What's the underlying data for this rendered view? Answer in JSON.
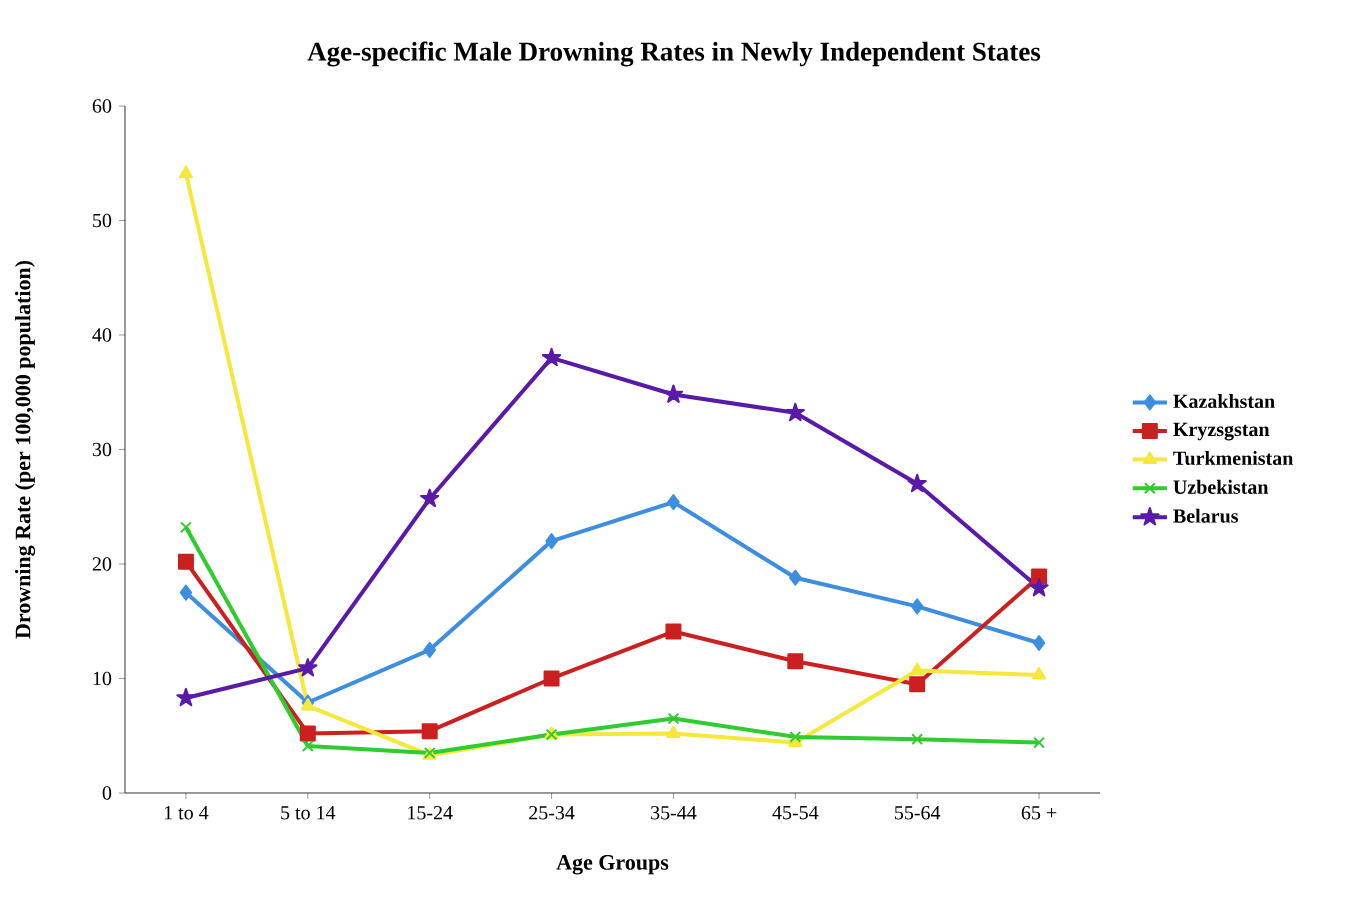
{
  "chart_data": {
    "type": "line",
    "title": "Age-specific Male Drowning Rates in Newly Independent States",
    "xlabel": "Age Groups",
    "ylabel": "Drowning Rate (per 100,000 population)",
    "categories": [
      "1 to 4",
      "5 to 14",
      "15-24",
      "25-34",
      "35-44",
      "45-54",
      "55-64",
      "65 +"
    ],
    "series": [
      {
        "name": "Kazakhstan",
        "color": "#3d8ee0",
        "marker": "diamond",
        "values": [
          17.5,
          7.9,
          12.5,
          22.0,
          25.4,
          18.8,
          16.3,
          13.1
        ]
      },
      {
        "name": "Kryzsgstan",
        "color": "#cc1f1f",
        "marker": "square",
        "values": [
          20.2,
          5.2,
          5.4,
          10.0,
          14.1,
          11.5,
          9.5,
          18.9
        ]
      },
      {
        "name": "Turkmenistan",
        "color": "#f5e83a",
        "marker": "triangle",
        "values": [
          54.1,
          7.6,
          3.3,
          5.1,
          5.2,
          4.4,
          10.7,
          10.3
        ]
      },
      {
        "name": "Uzbekistan",
        "color": "#2ecc2e",
        "marker": "cross",
        "values": [
          23.2,
          4.1,
          3.5,
          5.1,
          6.5,
          4.9,
          4.7,
          4.4
        ]
      },
      {
        "name": "Belarus",
        "color": "#5a1aa8",
        "marker": "star",
        "values": [
          8.3,
          10.9,
          25.7,
          38.0,
          34.8,
          33.2,
          27.0,
          17.9
        ]
      }
    ],
    "ylim": [
      0,
      60
    ],
    "yticks": [
      0,
      10,
      20,
      30,
      40,
      50,
      60
    ],
    "grid": false,
    "legend": "right",
    "line_style": "solid"
  }
}
